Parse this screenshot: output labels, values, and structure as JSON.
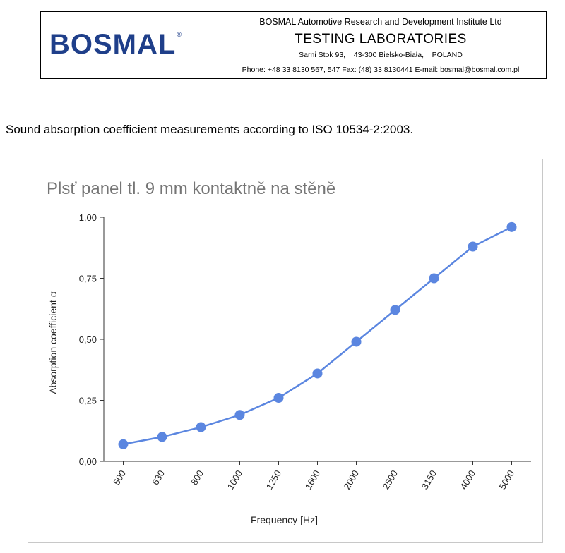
{
  "letterhead": {
    "logo_text": "BOSMAL",
    "institute": "BOSMAL Automotive Research and Development Institute Ltd",
    "lab": "TESTING  LABORATORIES",
    "address": "Sarni Stok 93,    43-300 Bielsko-Biała,    POLAND",
    "contact": "Phone: +48 33 8130 567,  547  Fax: (48) 33 8130441  E-mail: bosmal@bosmal.com.pl"
  },
  "intro": "Sound absorption coefficient measurements according to ISO 10534-2:2003.",
  "colors": {
    "series": "#5b86e0",
    "logo": "#1f3f8a",
    "title": "#757575"
  },
  "chart_data": {
    "type": "line",
    "title": "Plsť panel tl. 9 mm kontaktně na stěně",
    "xlabel": "Frequency [Hz]",
    "ylabel": "Absorption coefficient α",
    "categories": [
      "500",
      "630",
      "800",
      "1000",
      "1250",
      "1600",
      "2000",
      "2500",
      "3150",
      "4000",
      "5000"
    ],
    "series": [
      {
        "values": [
          0.07,
          0.1,
          0.14,
          0.19,
          0.26,
          0.36,
          0.49,
          0.62,
          0.75,
          0.88,
          0.96
        ]
      }
    ],
    "ylim": [
      0,
      1
    ],
    "yticks": [
      "0,00",
      "0,25",
      "0,50",
      "0,75",
      "1,00"
    ],
    "grid": false,
    "legend": "none"
  }
}
